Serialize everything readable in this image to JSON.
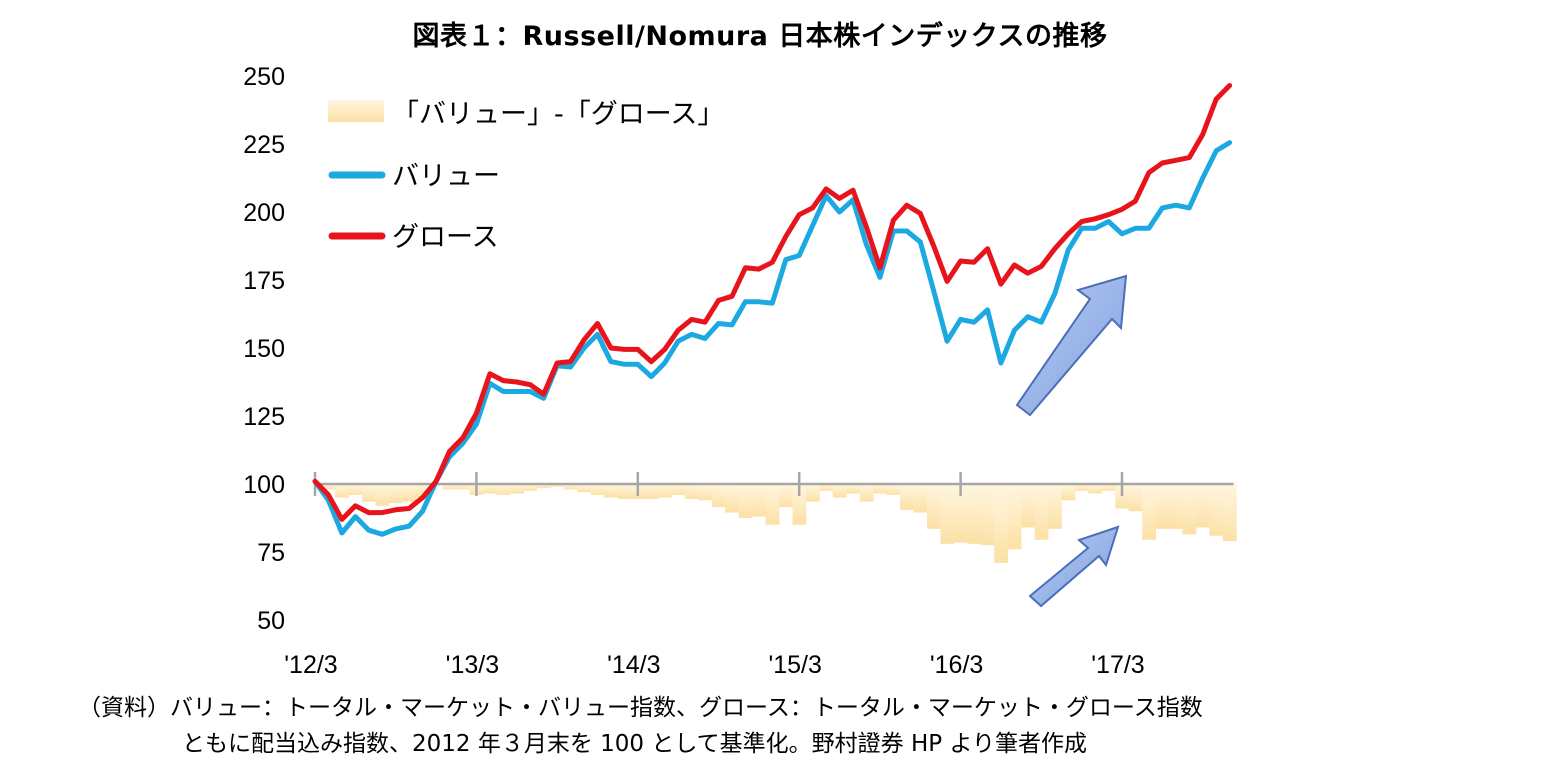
{
  "title": "図表１：Russell/Nomura 日本株インデックスの推移",
  "source": {
    "line1": "（資料）バリュー：トータル・マーケット・バリュー指数、グロース：トータル・マーケット・グロース指数",
    "line2": "ともに配当込み指数、2012 年３月末を 100 として基準化。野村證券 HP より筆者作成"
  },
  "colors": {
    "value": "#1CA9E1",
    "growth": "#E8141B",
    "diff": "#FCE1A6",
    "diff_light": "#FFF6E0",
    "arrow": "#8EAEEA",
    "arrow_edge": "#4A6FB8"
  },
  "chart_data": {
    "type": "line",
    "ylim": [
      50,
      250
    ],
    "yticks": [
      250,
      225,
      200,
      175,
      150,
      125,
      100,
      75,
      50
    ],
    "xtick_labels": [
      "'12/3",
      "'13/3",
      "'14/3",
      "'15/3",
      "'16/3",
      "'17/3"
    ],
    "xtick_index": [
      0,
      12,
      24,
      36,
      48,
      60
    ],
    "grid": false,
    "legend_placement": "top-left",
    "legend": [
      {
        "key": "diff",
        "label": "「バリュー」-「グロース」",
        "style": "area"
      },
      {
        "key": "value",
        "label": "バリュー",
        "style": "line"
      },
      {
        "key": "growth",
        "label": "グロース",
        "style": "line"
      }
    ],
    "diff_baseline": 100,
    "series": [
      {
        "key": "value",
        "name": "バリュー",
        "values": [
          101,
          94,
          82,
          88,
          83,
          81.5,
          83.5,
          84.5,
          90,
          101,
          110,
          115,
          122,
          137,
          134,
          134,
          134,
          131.5,
          143.5,
          143,
          150,
          155,
          145,
          144,
          144,
          139.5,
          144.5,
          152.5,
          155,
          153.5,
          159,
          158.5,
          167,
          167,
          166.5,
          182.5,
          184,
          195,
          206,
          200,
          204.5,
          188,
          176,
          193,
          193,
          189,
          171,
          152.5,
          160.5,
          159.5,
          164,
          144.5,
          156.5,
          161.5,
          159.5,
          170,
          186,
          194,
          194,
          196.5,
          192,
          194,
          194,
          201.5,
          202.5,
          201.5,
          212.5,
          222.5,
          225.5
        ]
      },
      {
        "key": "growth",
        "name": "グロース",
        "values": [
          101,
          96,
          87,
          92,
          89.5,
          89.5,
          90.5,
          91,
          95,
          101,
          112,
          117,
          126,
          140.5,
          138,
          137.5,
          136.5,
          133,
          144.5,
          145,
          153,
          159,
          150,
          149.5,
          149.5,
          145,
          149.5,
          156.5,
          160.5,
          159.5,
          167.5,
          169,
          179.5,
          179,
          181.5,
          191,
          199,
          201.5,
          208.5,
          205,
          208,
          194.5,
          179.5,
          197,
          202.5,
          199.5,
          187.5,
          174.5,
          182,
          181.5,
          186.5,
          173.5,
          180.5,
          177.5,
          180,
          186.5,
          192,
          196.5,
          197.5,
          199,
          201,
          204,
          214.5,
          218,
          219,
          220,
          228.5,
          241.5,
          246.5
        ]
      }
    ]
  }
}
